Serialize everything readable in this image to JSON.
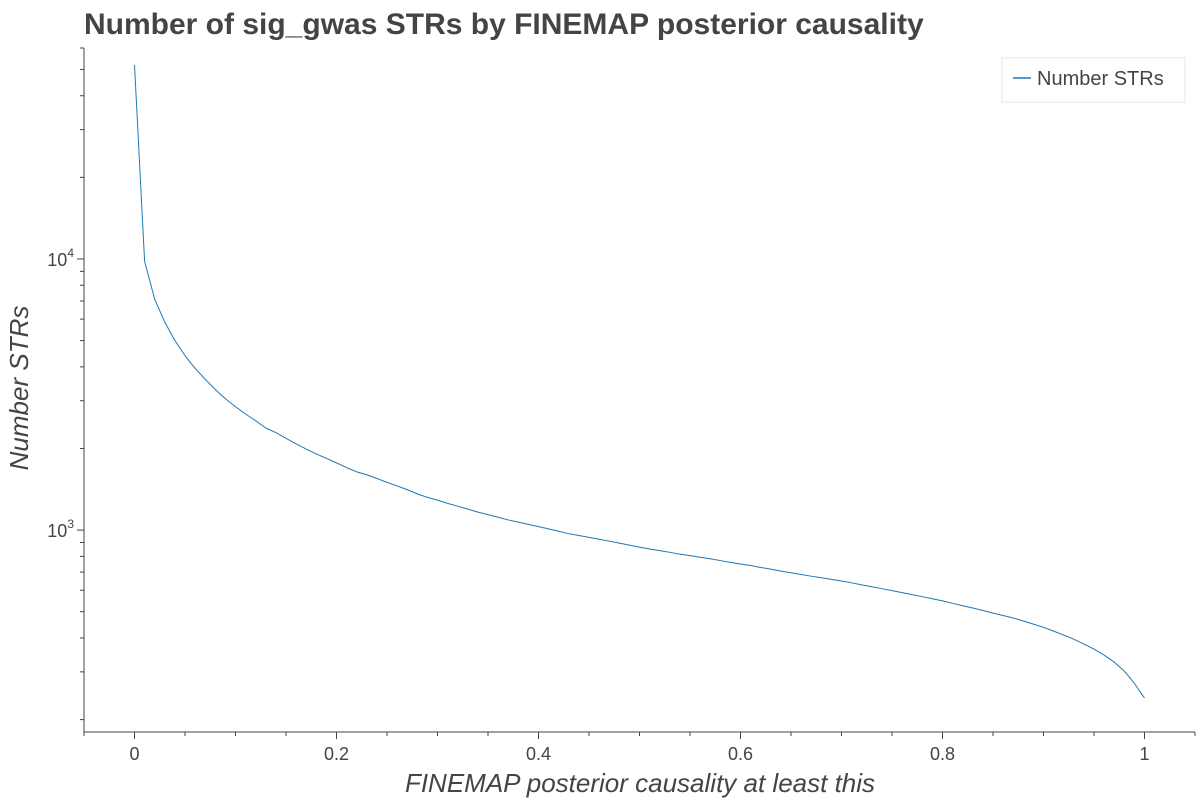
{
  "chart_data": {
    "type": "line",
    "title": "Number of sig_gwas STRs by FINEMAP posterior causality",
    "xlabel": "FINEMAP posterior causality at least this",
    "ylabel": "Number STRs",
    "xlim": [
      -0.05,
      1.05
    ],
    "ylim": [
      180,
      60000
    ],
    "y_scale": "log",
    "grid": false,
    "legend_position": "top-right",
    "x_ticks": [
      0,
      0.2,
      0.4,
      0.6,
      0.8,
      1
    ],
    "x_tick_labels": [
      "0",
      "0.2",
      "0.4",
      "0.6",
      "0.8",
      "1"
    ],
    "y_ticks": [
      1000,
      10000
    ],
    "y_tick_labels": [
      {
        "base": "10",
        "exp": "3"
      },
      {
        "base": "10",
        "exp": "4"
      }
    ],
    "colors": {
      "series": "#1f77b4",
      "text": "#444444",
      "axis": "#444444",
      "legend_border": "#e5e5e5"
    },
    "series": [
      {
        "name": "Number STRs",
        "x": [
          0,
          0.01,
          0.02,
          0.03,
          0.04,
          0.05,
          0.06,
          0.07,
          0.08,
          0.09,
          0.1,
          0.11,
          0.12,
          0.13,
          0.14,
          0.15,
          0.16,
          0.17,
          0.18,
          0.19,
          0.2,
          0.21,
          0.22,
          0.23,
          0.24,
          0.25,
          0.26,
          0.27,
          0.28,
          0.29,
          0.3,
          0.31,
          0.32,
          0.33,
          0.34,
          0.35,
          0.36,
          0.37,
          0.38,
          0.39,
          0.4,
          0.41,
          0.42,
          0.43,
          0.44,
          0.45,
          0.46,
          0.47,
          0.48,
          0.49,
          0.5,
          0.51,
          0.52,
          0.53,
          0.54,
          0.55,
          0.56,
          0.57,
          0.58,
          0.59,
          0.6,
          0.61,
          0.62,
          0.63,
          0.64,
          0.65,
          0.66,
          0.67,
          0.68,
          0.69,
          0.7,
          0.71,
          0.72,
          0.73,
          0.74,
          0.75,
          0.76,
          0.77,
          0.78,
          0.79,
          0.8,
          0.81,
          0.82,
          0.83,
          0.84,
          0.85,
          0.86,
          0.87,
          0.88,
          0.89,
          0.9,
          0.91,
          0.92,
          0.93,
          0.94,
          0.95,
          0.96,
          0.97,
          0.98,
          0.99,
          1.0
        ],
        "values": [
          52000,
          9800,
          7100,
          5850,
          5000,
          4400,
          3950,
          3600,
          3300,
          3050,
          2850,
          2680,
          2530,
          2380,
          2290,
          2180,
          2080,
          1990,
          1910,
          1840,
          1770,
          1700,
          1640,
          1600,
          1550,
          1500,
          1455,
          1410,
          1360,
          1320,
          1290,
          1255,
          1225,
          1195,
          1165,
          1140,
          1115,
          1090,
          1070,
          1050,
          1030,
          1010,
          990,
          970,
          955,
          940,
          925,
          910,
          895,
          880,
          865,
          852,
          840,
          828,
          815,
          805,
          794,
          784,
          772,
          760,
          750,
          740,
          728,
          718,
          706,
          696,
          686,
          676,
          667,
          658,
          649,
          639,
          628,
          618,
          608,
          598,
          588,
          578,
          568,
          558,
          548,
          537,
          526,
          516,
          505,
          494,
          484,
          474,
          462,
          450,
          438,
          424,
          410,
          396,
          380,
          364,
          346,
          326,
          302,
          272,
          240
        ]
      }
    ]
  }
}
